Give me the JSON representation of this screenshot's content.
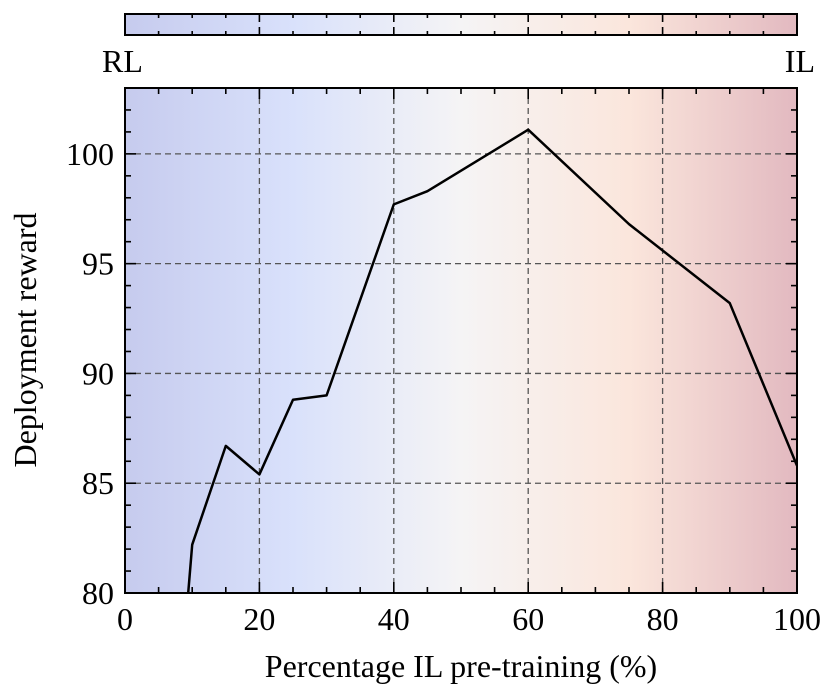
{
  "chart_data": {
    "type": "line",
    "xlabel": "Percentage IL pre-training (%)",
    "ylabel": "Deployment reward",
    "xlim": [
      0,
      100
    ],
    "ylim": [
      80,
      103
    ],
    "x_ticks": [
      0,
      20,
      40,
      60,
      80,
      100
    ],
    "y_ticks": [
      80,
      85,
      90,
      95,
      100
    ],
    "x_tick_labels": [
      "0",
      "20",
      "40",
      "60",
      "80",
      "100"
    ],
    "y_tick_labels": [
      "80",
      "85",
      "90",
      "95",
      "100"
    ],
    "grid": true,
    "gradient_bar": {
      "left_label": "RL",
      "right_label": "IL",
      "colors": [
        "#c6cbee",
        "#d9e1fb",
        "#f5f4f5",
        "#fbe6dc",
        "#e2b9c0"
      ]
    },
    "series": [
      {
        "color": "#000000",
        "x": [
          9,
          10,
          15,
          20,
          25,
          30,
          40,
          45,
          60,
          75,
          90,
          100
        ],
        "y": [
          78.5,
          82.2,
          86.7,
          85.4,
          88.8,
          89.0,
          97.7,
          98.3,
          101.1,
          96.8,
          93.2,
          85.8
        ]
      }
    ]
  }
}
